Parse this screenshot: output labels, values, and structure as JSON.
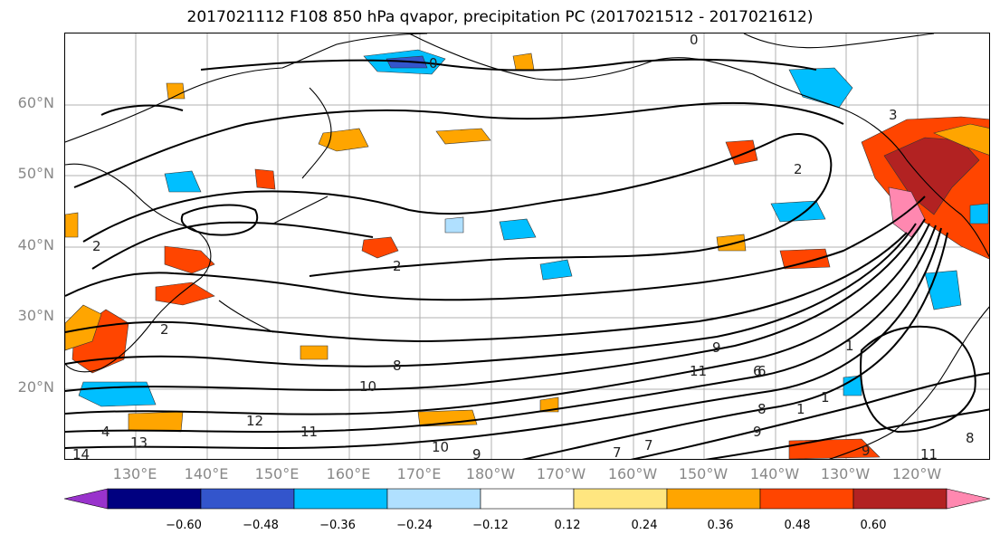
{
  "title": "2017021112 F108 850 hPa qvapor, precipitation PC (2017021512 - 2017021612)",
  "lat_labels": [
    "60°N",
    "50°N",
    "40°N",
    "30°N",
    "20°N"
  ],
  "lon_labels": [
    "130°E",
    "140°E",
    "150°E",
    "160°E",
    "170°E",
    "180°W",
    "170°W",
    "160°W",
    "150°W",
    "140°W",
    "130°W",
    "120°W"
  ],
  "colorbar": {
    "labels": [
      "−0.60",
      "−0.48",
      "−0.36",
      "−0.24",
      "−0.12",
      "0.12",
      "0.24",
      "0.36",
      "0.48",
      "0.60"
    ],
    "colors": [
      "#9933cc",
      "#000080",
      "#3355cc",
      "#00bfff",
      "#b0e0ff",
      "#ffffff",
      "#ffe680",
      "#ffa500",
      "#ff4500",
      "#b22222",
      "#ff88b0"
    ]
  },
  "contour_labels": [
    "0",
    "0",
    "2",
    "2",
    "2",
    "2",
    "3",
    "4",
    "6",
    "7",
    "8",
    "9",
    "9",
    "10",
    "11",
    "12",
    "13",
    "14",
    "10",
    "9",
    "8",
    "7",
    "6",
    "11",
    "8",
    "11",
    "9",
    "1",
    "1",
    "1"
  ]
}
